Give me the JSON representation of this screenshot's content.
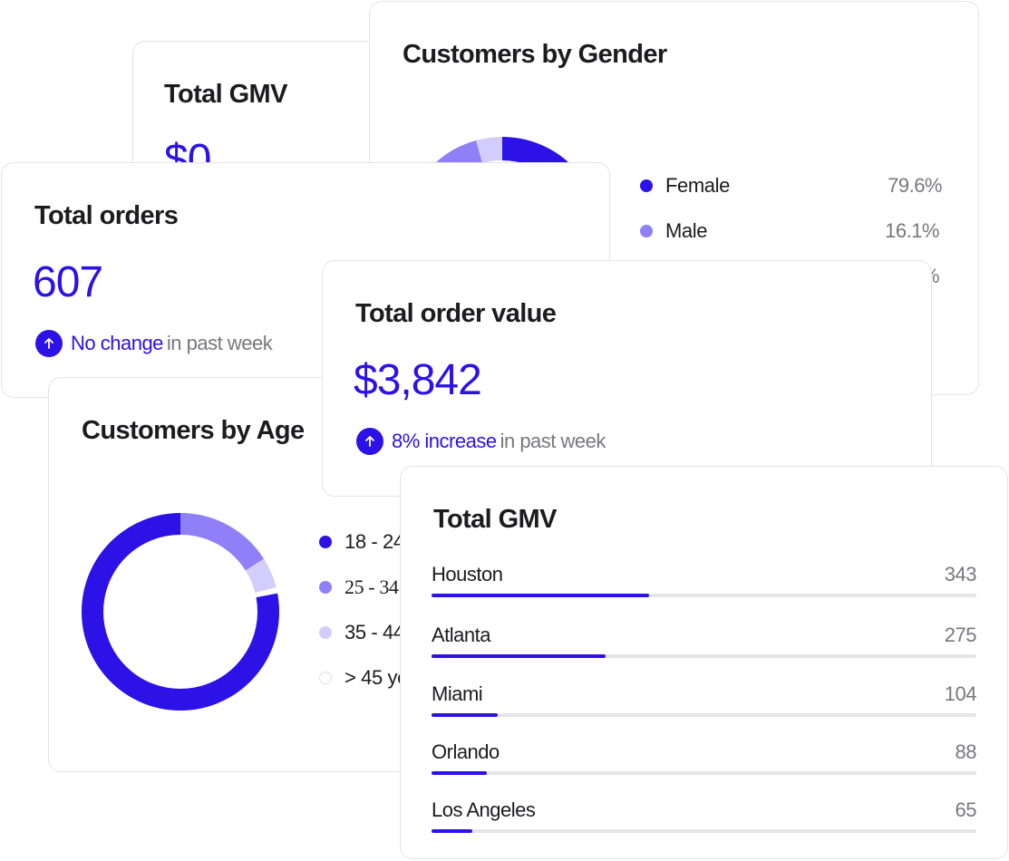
{
  "colors": {
    "accent": "#2c12e6",
    "accent_mid": "#8f80f7",
    "accent_light": "#d3cdfb",
    "muted_text": "#77777f",
    "border": "#e4e4e9",
    "track": "#e4e4e9"
  },
  "back_gmv_card": {
    "title": "Total GMV",
    "value": "$0"
  },
  "gender_card": {
    "title": "Customers by Gender",
    "items": [
      {
        "label": "Female",
        "pct": "79.6%",
        "fraction": 0.796,
        "color": "#2c12e6"
      },
      {
        "label": "Male",
        "pct": "16.1%",
        "fraction": 0.161,
        "color": "#8f80f7"
      },
      {
        "label": "",
        "pct": "%",
        "fraction": 0.043,
        "color": "#d3cdfb"
      }
    ]
  },
  "orders_card": {
    "title": "Total orders",
    "value": "607",
    "change_icon": "arrow-up-icon",
    "change_strong": "No change",
    "change_rest": "in past week"
  },
  "order_value_card": {
    "title": "Total order value",
    "value": "$3,842",
    "change_icon": "arrow-up-icon",
    "change_strong": "8% increase",
    "change_rest": "in past week"
  },
  "age_card": {
    "title": "Customers by Age",
    "items": [
      {
        "label": "18 - 24",
        "fraction": 0.79,
        "color": "#2c12e6"
      },
      {
        "label": "25 - 34",
        "fraction": 0.16,
        "color": "#8f80f7"
      },
      {
        "label": "35 - 44",
        "fraction": 0.05,
        "color": "#d3cdfb"
      },
      {
        "label": "> 45 ye",
        "fraction": 0.0,
        "color": "#ffffff"
      }
    ]
  },
  "gmv_card": {
    "title": "Total GMV",
    "max": 343,
    "cities": [
      {
        "name": "Houston",
        "value": 343
      },
      {
        "name": "Atlanta",
        "value": 275
      },
      {
        "name": "Miami",
        "value": 104
      },
      {
        "name": "Orlando",
        "value": 88
      },
      {
        "name": "Los Angeles",
        "value": 65
      }
    ]
  }
}
